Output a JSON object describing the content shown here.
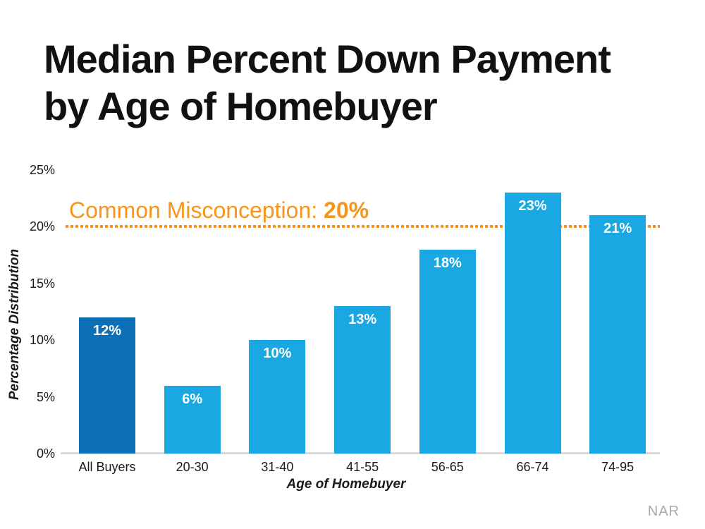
{
  "slide": {
    "title_line1": "Median Percent Down Payment",
    "title_line2": "by Age of Homebuyer",
    "source": "NAR"
  },
  "annotation": {
    "prefix": "Common Misconception: ",
    "value": "20%"
  },
  "colors": {
    "bar_default": "#1aa7e2",
    "bar_highlight": "#0d6fb6",
    "annotation_orange": "#f7941d",
    "axis_line_gray": "#d8dadb",
    "source_gray": "#a8aaad",
    "bar_label_white": "#ffffff",
    "text_black": "#1a1a1a"
  },
  "chart_data": {
    "type": "bar",
    "title": "Median Percent Down Payment by Age of Homebuyer",
    "categories": [
      "All Buyers",
      "20-30",
      "31-40",
      "41-55",
      "56-65",
      "66-74",
      "74-95"
    ],
    "values": [
      12,
      6,
      10,
      13,
      18,
      23,
      21
    ],
    "value_labels": [
      "12%",
      "6%",
      "10%",
      "13%",
      "18%",
      "23%",
      "21%"
    ],
    "xlabel": "Age of Homebuyer",
    "ylabel": "Percentage Distribution",
    "ylim": [
      0,
      25
    ],
    "yticks": [
      0,
      5,
      10,
      15,
      20,
      25
    ],
    "ytick_labels": [
      "0%",
      "5%",
      "10%",
      "15%",
      "20%",
      "25%"
    ],
    "grid": false,
    "legend": "none",
    "highlight_index": 0,
    "reference_line": {
      "value": 20,
      "style": "dotted",
      "color": "#f7941d",
      "label": "Common Misconception: 20%"
    }
  }
}
